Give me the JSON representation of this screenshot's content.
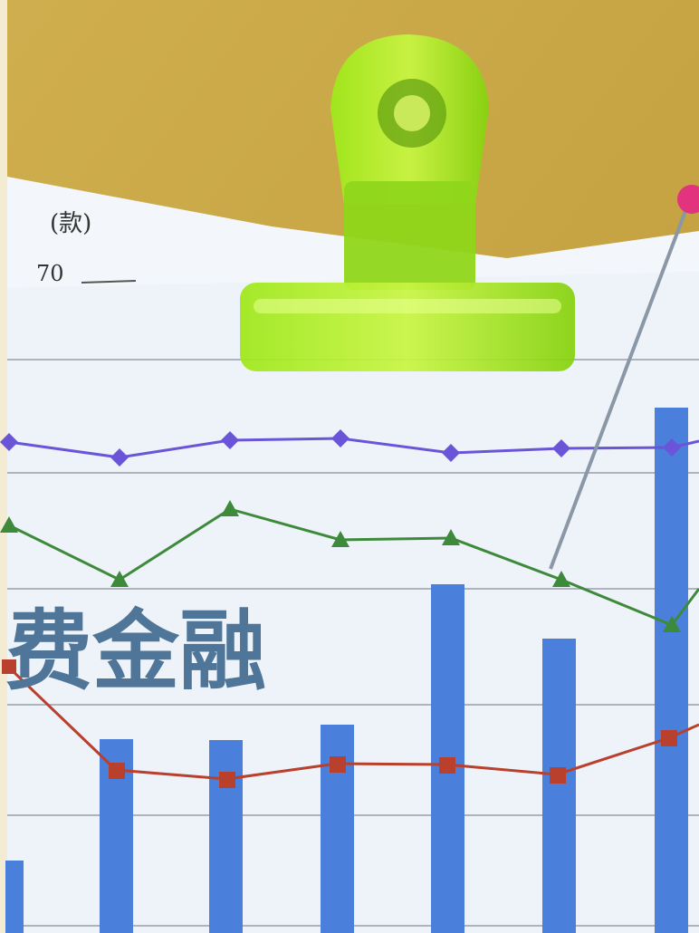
{
  "image": {
    "unit_label": "(款)",
    "tick_label": "70",
    "headline": "费金融"
  }
}
